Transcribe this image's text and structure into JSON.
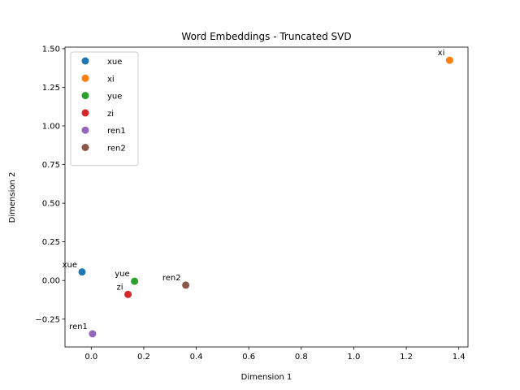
{
  "chart_data": {
    "type": "scatter",
    "title": "Word Embeddings - Truncated SVD",
    "xlabel": "Dimension 1",
    "ylabel": "Dimension 2",
    "xlim": [
      -0.1,
      1.435
    ],
    "ylim": [
      -0.43,
      1.51
    ],
    "x_ticks": [
      0.0,
      0.2,
      0.4,
      0.6,
      0.8,
      1.0,
      1.2,
      1.4
    ],
    "x_tick_labels": [
      "0.0",
      "0.2",
      "0.4",
      "0.6",
      "0.8",
      "1.0",
      "1.2",
      "1.4"
    ],
    "y_ticks": [
      -0.25,
      0.0,
      0.25,
      0.5,
      0.75,
      1.0,
      1.25,
      1.5
    ],
    "y_tick_labels": [
      "−0.25",
      "0.00",
      "0.25",
      "0.50",
      "0.75",
      "1.00",
      "1.25",
      "1.50"
    ],
    "grid": false,
    "legend_position": "top-left",
    "series": [
      {
        "name": "xue",
        "color": "#1f77b4",
        "x": -0.035,
        "y": 0.055
      },
      {
        "name": "xi",
        "color": "#ff7f0e",
        "x": 1.365,
        "y": 1.425
      },
      {
        "name": "yue",
        "color": "#2ca02c",
        "x": 0.165,
        "y": -0.005
      },
      {
        "name": "zi",
        "color": "#d62728",
        "x": 0.14,
        "y": -0.09
      },
      {
        "name": "ren1",
        "color": "#9467bd",
        "x": 0.005,
        "y": -0.345
      },
      {
        "name": "ren2",
        "color": "#8c564b",
        "x": 0.36,
        "y": -0.03
      }
    ]
  }
}
